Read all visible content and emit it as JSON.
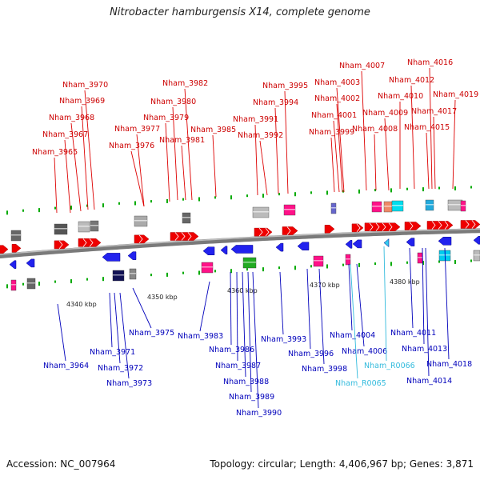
{
  "title": "Nitrobacter hamburgensis X14, complete genome",
  "footer": {
    "accession": "Accession: NC_007964",
    "topology": "Topology: circular; Length: 4,406,967 bp; Genes: 3,871"
  },
  "colors": {
    "backbone": "#8a8a8a",
    "top_labels": "#dd0000",
    "bottom_labels": "#0000bb",
    "rna_labels": "#33bbdd",
    "green_ticks": "#00aa00"
  },
  "tick_labels": [
    "4340 kbp",
    "4350 kbp",
    "4360 kbp",
    "4370 kbp",
    "4380 kbp"
  ],
  "top_genes": [
    {
      "name": "Nham_3965"
    },
    {
      "name": "Nham_3967"
    },
    {
      "name": "Nham_3968"
    },
    {
      "name": "Nham_3969"
    },
    {
      "name": "Nham_3970"
    },
    {
      "name": "Nham_3976"
    },
    {
      "name": "Nham_3977"
    },
    {
      "name": "Nham_3979"
    },
    {
      "name": "Nham_3980"
    },
    {
      "name": "Nham_3981"
    },
    {
      "name": "Nham_3982"
    },
    {
      "name": "Nham_3985"
    },
    {
      "name": "Nham_3991"
    },
    {
      "name": "Nham_3992"
    },
    {
      "name": "Nham_3994"
    },
    {
      "name": "Nham_3995"
    },
    {
      "name": "Nham_3999"
    },
    {
      "name": "Nham_4001"
    },
    {
      "name": "Nham_4002"
    },
    {
      "name": "Nham_4003"
    },
    {
      "name": "Nham_4007"
    },
    {
      "name": "Nham_4008"
    },
    {
      "name": "Nham_4009"
    },
    {
      "name": "Nham_4010"
    },
    {
      "name": "Nham_4012"
    },
    {
      "name": "Nham_4015"
    },
    {
      "name": "Nham_4016"
    },
    {
      "name": "Nham_4017"
    },
    {
      "name": "Nham_4019"
    }
  ],
  "bottom_genes": [
    {
      "name": "Nham_3964"
    },
    {
      "name": "Nham_3971"
    },
    {
      "name": "Nham_3972"
    },
    {
      "name": "Nham_3973"
    },
    {
      "name": "Nham_3975"
    },
    {
      "name": "Nham_3983"
    },
    {
      "name": "Nham_3986"
    },
    {
      "name": "Nham_3987"
    },
    {
      "name": "Nham_3988"
    },
    {
      "name": "Nham_3989"
    },
    {
      "name": "Nham_3990"
    },
    {
      "name": "Nham_3993"
    },
    {
      "name": "Nham_3996"
    },
    {
      "name": "Nham_3998"
    },
    {
      "name": "Nham_4004"
    },
    {
      "name": "Nham_4006"
    },
    {
      "name": "Nham_R0066"
    },
    {
      "name": "Nham_R0065"
    },
    {
      "name": "Nham_4011"
    },
    {
      "name": "Nham_4013"
    },
    {
      "name": "Nham_4018"
    },
    {
      "name": "Nham_4014"
    }
  ]
}
